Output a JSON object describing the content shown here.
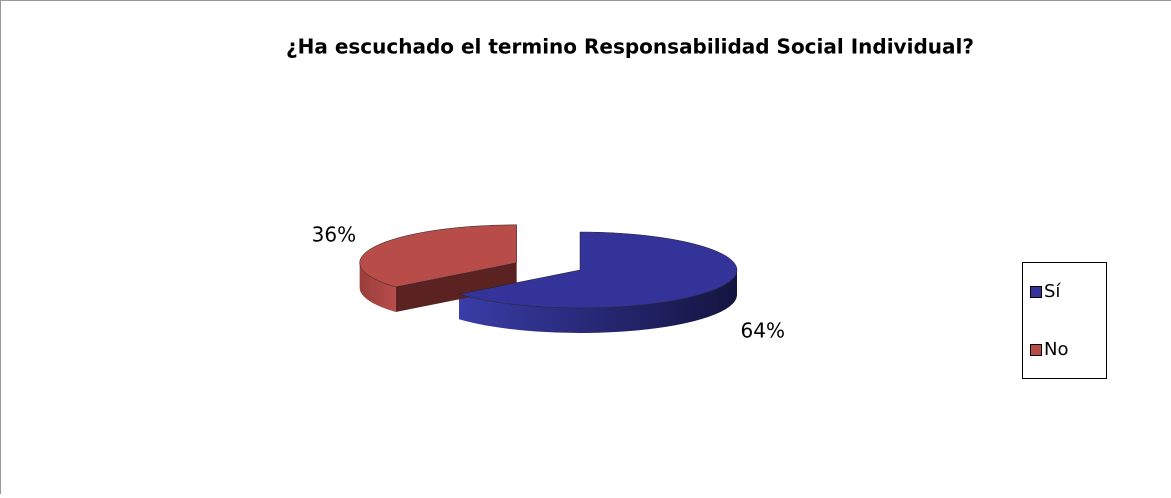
{
  "chart_data": {
    "type": "pie",
    "title": "¿Ha escuchado el termino Responsabilidad Social Individual?",
    "categories": [
      "Sí",
      "No"
    ],
    "values": [
      64,
      36
    ],
    "value_labels": [
      "64%",
      "36%"
    ],
    "colors": [
      "#333399",
      "#b84c49"
    ],
    "legend": "right",
    "three_d": true,
    "exploded": true
  }
}
